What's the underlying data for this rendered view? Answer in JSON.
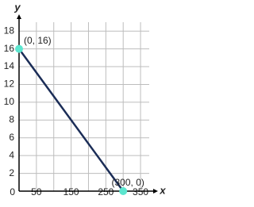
{
  "chart_data": {
    "type": "line",
    "x_label": "x",
    "y_label": "y",
    "x": [
      0,
      300
    ],
    "series": [
      {
        "values": [
          16,
          0
        ],
        "color": "#1b2d57",
        "marker_color": "#5ce6cf",
        "point_labels": [
          "(0, 16)",
          "(300, 0)"
        ]
      }
    ],
    "xlim": [
      0,
      375
    ],
    "ylim": [
      0,
      19
    ],
    "xticks": [
      50,
      150,
      250,
      350
    ],
    "yticks": [
      0,
      2,
      4,
      6,
      8,
      10,
      12,
      14,
      16,
      18
    ],
    "grid": true
  }
}
